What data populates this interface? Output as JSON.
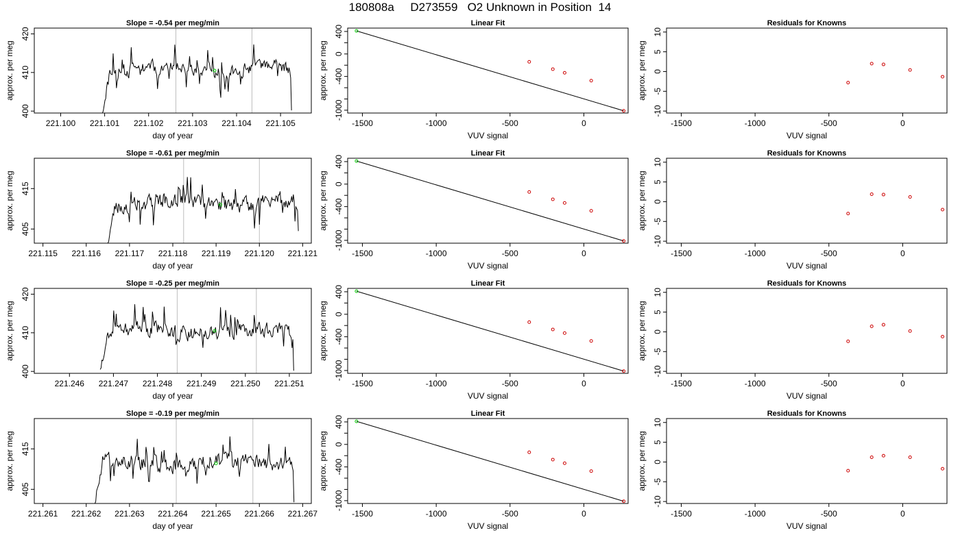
{
  "figure_title": "180808a     D273559   O2 Unknown in Position  14",
  "colors": {
    "trace": "#000000",
    "marker_unknown": "#00cc00",
    "marker_known": "#cc0000",
    "gridline": "#bebebe",
    "box": "#000000"
  },
  "chart_data": [
    {
      "type": "line",
      "title": "Slope =  -0.54  per meg/min",
      "xlabel": "day of year",
      "ylabel": "approx. per meg",
      "xlim": [
        221.0994,
        221.1057
      ],
      "ylim": [
        399.5,
        421.5
      ],
      "xticks": [
        "221.100",
        "221.101",
        "221.102",
        "221.103",
        "221.104",
        "221.105"
      ],
      "yticks": [
        "400",
        "410",
        "420"
      ],
      "vlines": [
        221.10262,
        221.10435
      ],
      "series_seed": 11,
      "trace_start": 221.10095,
      "trace_end": 221.10525,
      "ymean": 410.6,
      "yamp": 2.4,
      "ystart": 399.5,
      "yend": 400.2,
      "marker": [
        221.1035,
        410.5
      ]
    },
    {
      "type": "scatter",
      "title": "Linear Fit",
      "xlabel": "VUV signal",
      "ylabel": "approx. per meg",
      "xlim": [
        -1600,
        300
      ],
      "ylim": [
        -1050,
        460
      ],
      "xticks": [
        "-1500",
        "-1000",
        "-500",
        "0"
      ],
      "yticks": [
        "400",
        "0",
        "-400",
        "-1000"
      ],
      "yminor": [
        200,
        -200,
        -600,
        -800
      ],
      "line": [
        [
          -1540,
          410
        ],
        [
          270,
          -1010
        ]
      ],
      "unknown_point": [
        -1540,
        410
      ],
      "known_points": [
        [
          -370,
          -140
        ],
        [
          -210,
          -270
        ],
        [
          -130,
          -335
        ],
        [
          50,
          -475
        ],
        [
          270,
          -1010
        ]
      ]
    },
    {
      "type": "scatter",
      "title": "Residuals for Knowns",
      "xlabel": "VUV signal",
      "ylabel": "approx. per meg",
      "xlim": [
        -1600,
        300
      ],
      "ylim": [
        -10.5,
        11
      ],
      "xticks": [
        "-1500",
        "-1000",
        "-500",
        "0"
      ],
      "yticks": [
        "10",
        "5",
        "0",
        "-5",
        "-10"
      ],
      "known_points": [
        [
          -370,
          -2.8
        ],
        [
          -210,
          2.0
        ],
        [
          -130,
          1.8
        ],
        [
          50,
          0.4
        ],
        [
          270,
          -1.3
        ]
      ]
    },
    {
      "type": "line",
      "title": "Slope =  -0.61  per meg/min",
      "xlabel": "day of year",
      "ylabel": "approx. per meg",
      "xlim": [
        221.1148,
        221.1212
      ],
      "ylim": [
        401.5,
        422.5
      ],
      "xticks": [
        "221.115",
        "221.116",
        "221.117",
        "221.118",
        "221.119",
        "221.120",
        "221.121"
      ],
      "yticks": [
        "405",
        "415"
      ],
      "vlines": [
        221.11825,
        221.12
      ],
      "series_seed": 23,
      "trace_start": 221.1165,
      "trace_end": 221.1209,
      "ymean": 411.6,
      "yamp": 2.6,
      "ystart": 401.5,
      "yend": 404.5,
      "marker": [
        221.1191,
        411.0
      ]
    },
    {
      "type": "scatter",
      "title": "Linear Fit",
      "xlabel": "VUV signal",
      "ylabel": "approx. per meg",
      "xlim": [
        -1600,
        300
      ],
      "ylim": [
        -1050,
        460
      ],
      "xticks": [
        "-1500",
        "-1000",
        "-500",
        "0"
      ],
      "yticks": [
        "400",
        "0",
        "-400",
        "-1000"
      ],
      "yminor": [
        200,
        -200,
        -600,
        -800
      ],
      "line": [
        [
          -1540,
          410
        ],
        [
          270,
          -1010
        ]
      ],
      "unknown_point": [
        -1540,
        410
      ],
      "known_points": [
        [
          -370,
          -140
        ],
        [
          -210,
          -270
        ],
        [
          -130,
          -335
        ],
        [
          50,
          -475
        ],
        [
          270,
          -1010
        ]
      ]
    },
    {
      "type": "scatter",
      "title": "Residuals for Knowns",
      "xlabel": "VUV signal",
      "ylabel": "approx. per meg",
      "xlim": [
        -1600,
        300
      ],
      "ylim": [
        -10.5,
        11
      ],
      "xticks": [
        "-1500",
        "-1000",
        "-500",
        "0"
      ],
      "yticks": [
        "10",
        "5",
        "0",
        "-5",
        "-10"
      ],
      "known_points": [
        [
          -370,
          -3.0
        ],
        [
          -210,
          1.9
        ],
        [
          -130,
          1.8
        ],
        [
          50,
          1.2
        ],
        [
          270,
          -2.0
        ]
      ]
    },
    {
      "type": "line",
      "title": "Slope =  -0.25  per meg/min",
      "xlabel": "day of year",
      "ylabel": "approx. per meg",
      "xlim": [
        221.2452,
        221.2515
      ],
      "ylim": [
        399.5,
        421.5
      ],
      "xticks": [
        "221.246",
        "221.247",
        "221.248",
        "221.249",
        "221.250",
        "221.251"
      ],
      "yticks": [
        "400",
        "410",
        "420"
      ],
      "vlines": [
        221.24845,
        221.25025
      ],
      "series_seed": 37,
      "trace_start": 221.2467,
      "trace_end": 221.2511,
      "ymean": 410.3,
      "yamp": 2.6,
      "ystart": 400.5,
      "yend": 400.2,
      "marker": [
        221.2493,
        410.5
      ]
    },
    {
      "type": "scatter",
      "title": "Linear Fit",
      "xlabel": "VUV signal",
      "ylabel": "approx. per meg",
      "xlim": [
        -1600,
        300
      ],
      "ylim": [
        -1050,
        460
      ],
      "xticks": [
        "-1500",
        "-1000",
        "-500",
        "0"
      ],
      "yticks": [
        "400",
        "0",
        "-400",
        "-1000"
      ],
      "yminor": [
        200,
        -200,
        -600,
        -800
      ],
      "line": [
        [
          -1540,
          410
        ],
        [
          270,
          -1010
        ]
      ],
      "unknown_point": [
        -1540,
        410
      ],
      "known_points": [
        [
          -370,
          -140
        ],
        [
          -210,
          -270
        ],
        [
          -130,
          -335
        ],
        [
          50,
          -475
        ],
        [
          270,
          -1010
        ]
      ]
    },
    {
      "type": "scatter",
      "title": "Residuals for Knowns",
      "xlabel": "VUV signal",
      "ylabel": "approx. per meg",
      "xlim": [
        -1600,
        300
      ],
      "ylim": [
        -10.5,
        11
      ],
      "xticks": [
        "-1500",
        "-1000",
        "-500",
        "0"
      ],
      "yticks": [
        "10",
        "5",
        "0",
        "-5",
        "-10"
      ],
      "known_points": [
        [
          -370,
          -2.4
        ],
        [
          -210,
          1.4
        ],
        [
          -130,
          1.8
        ],
        [
          50,
          0.2
        ],
        [
          270,
          -1.2
        ]
      ]
    },
    {
      "type": "line",
      "title": "Slope =  -0.19  per meg/min",
      "xlabel": "day of year",
      "ylabel": "approx. per meg",
      "xlim": [
        221.2608,
        221.2672
      ],
      "ylim": [
        401.5,
        422.5
      ],
      "xticks": [
        "221.261",
        "221.262",
        "221.263",
        "221.264",
        "221.265",
        "221.266",
        "221.267"
      ],
      "yticks": [
        "405",
        "415"
      ],
      "vlines": [
        221.26408,
        221.26585
      ],
      "series_seed": 51,
      "trace_start": 221.2622,
      "trace_end": 221.2668,
      "ymean": 411.6,
      "yamp": 2.5,
      "ystart": 401.5,
      "yend": 401.8,
      "marker": [
        221.265,
        411.4
      ]
    },
    {
      "type": "scatter",
      "title": "Linear Fit",
      "xlabel": "VUV signal",
      "ylabel": "approx. per meg",
      "xlim": [
        -1600,
        300
      ],
      "ylim": [
        -1050,
        460
      ],
      "xticks": [
        "-1500",
        "-1000",
        "-500",
        "0"
      ],
      "yticks": [
        "400",
        "0",
        "-400",
        "-1000"
      ],
      "yminor": [
        200,
        -200,
        -600,
        -800
      ],
      "line": [
        [
          -1540,
          410
        ],
        [
          270,
          -1010
        ]
      ],
      "unknown_point": [
        -1540,
        410
      ],
      "known_points": [
        [
          -370,
          -140
        ],
        [
          -210,
          -270
        ],
        [
          -130,
          -335
        ],
        [
          50,
          -475
        ],
        [
          270,
          -1010
        ]
      ]
    },
    {
      "type": "scatter",
      "title": "Residuals for Knowns",
      "xlabel": "VUV signal",
      "ylabel": "approx. per meg",
      "xlim": [
        -1600,
        300
      ],
      "ylim": [
        -10.5,
        11
      ],
      "xticks": [
        "-1500",
        "-1000",
        "-500",
        "0"
      ],
      "yticks": [
        "10",
        "5",
        "0",
        "-5",
        "-10"
      ],
      "known_points": [
        [
          -370,
          -2.2
        ],
        [
          -210,
          1.2
        ],
        [
          -130,
          1.6
        ],
        [
          50,
          1.2
        ],
        [
          270,
          -1.7
        ]
      ]
    }
  ]
}
